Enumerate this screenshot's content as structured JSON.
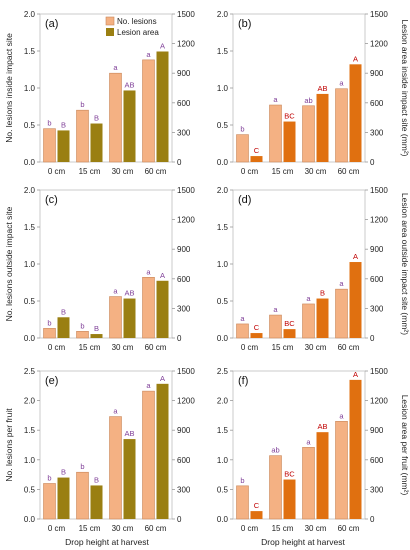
{
  "colors": {
    "lesions": "#F4B183",
    "lesions_border": "#C9875A",
    "area_left": "#9A7F12",
    "area_right": "#E07010",
    "sig_lesions": "#7F3F98",
    "sig_area_left": "#7F3F98",
    "sig_area_right": "#C00000"
  },
  "legend": {
    "lesions": "No. lesions",
    "area": "Lesion area"
  },
  "xlabel": "Drop height at harvest",
  "chart_data": [
    {
      "type": "bar",
      "panel": "(a)",
      "categories": [
        "0 cm",
        "15 cm",
        "30 cm",
        "60 cm"
      ],
      "ylabel": "No. lesions inside impact site",
      "y2label": "",
      "ylim": [
        0,
        2.0
      ],
      "yticks": [
        "0.0",
        "0.5",
        "1.0",
        "1.5",
        "2.0"
      ],
      "y2lim": [
        0,
        1500
      ],
      "y2ticks": [
        "0",
        "300",
        "600",
        "900",
        "1200",
        "1500"
      ],
      "area_color": "left",
      "series": [
        {
          "name": "No. lesions",
          "axis": "left",
          "values": [
            0.45,
            0.7,
            1.2,
            1.38
          ],
          "letters": [
            "b",
            "b",
            "a",
            "a"
          ]
        },
        {
          "name": "Lesion area",
          "axis": "right",
          "values": [
            320,
            390,
            725,
            1120
          ],
          "letters": [
            "B",
            "B",
            "AB",
            "A"
          ]
        }
      ]
    },
    {
      "type": "bar",
      "panel": "(b)",
      "categories": [
        "0 cm",
        "15 cm",
        "30 cm",
        "60 cm"
      ],
      "ylabel": "",
      "y2label": "Lesion area inside impact site (mm²)",
      "ylim": [
        0,
        2.0
      ],
      "yticks": [
        "0.0",
        "0.5",
        "1.0",
        "1.5",
        "2.0"
      ],
      "y2lim": [
        0,
        1500
      ],
      "y2ticks": [
        "0",
        "300",
        "600",
        "900",
        "1200",
        "1500"
      ],
      "area_color": "right",
      "series": [
        {
          "name": "No. lesions",
          "axis": "left",
          "values": [
            0.37,
            0.77,
            0.76,
            0.99
          ],
          "letters": [
            "b",
            "a",
            "ab",
            "a"
          ]
        },
        {
          "name": "Lesion area",
          "axis": "right",
          "values": [
            60,
            410,
            690,
            990
          ],
          "letters": [
            "C",
            "BC",
            "AB",
            "A"
          ]
        }
      ]
    },
    {
      "type": "bar",
      "panel": "(c)",
      "categories": [
        "0 cm",
        "15 cm",
        "30 cm",
        "60 cm"
      ],
      "ylabel": "No. lesions outside impact site",
      "y2label": "",
      "ylim": [
        0,
        2.0
      ],
      "yticks": [
        "0.0",
        "0.5",
        "1.0",
        "1.5",
        "2.0"
      ],
      "y2lim": [
        0,
        1500
      ],
      "y2ticks": [
        "0",
        "300",
        "600",
        "900",
        "1200",
        "1500"
      ],
      "area_color": "left",
      "series": [
        {
          "name": "No. lesions",
          "axis": "left",
          "values": [
            0.13,
            0.09,
            0.56,
            0.82
          ],
          "letters": [
            "b",
            "b",
            "a",
            "a"
          ]
        },
        {
          "name": "Lesion area",
          "axis": "right",
          "values": [
            210,
            40,
            400,
            580
          ],
          "letters": [
            "B",
            "B",
            "AB",
            "A"
          ]
        }
      ]
    },
    {
      "type": "bar",
      "panel": "(d)",
      "categories": [
        "0 cm",
        "15 cm",
        "30 cm",
        "60 cm"
      ],
      "ylabel": "",
      "y2label": "Lesion area outside impact site (mm²)",
      "ylim": [
        0,
        2.0
      ],
      "yticks": [
        "0.0",
        "0.5",
        "1.0",
        "1.5",
        "2.0"
      ],
      "y2lim": [
        0,
        1500
      ],
      "y2ticks": [
        "0",
        "300",
        "600",
        "900",
        "1200",
        "1500"
      ],
      "area_color": "right",
      "series": [
        {
          "name": "No. lesions",
          "axis": "left",
          "values": [
            0.19,
            0.31,
            0.46,
            0.66
          ],
          "letters": [
            "a",
            "a",
            "a",
            "a"
          ]
        },
        {
          "name": "Lesion area",
          "axis": "right",
          "values": [
            50,
            90,
            400,
            770
          ],
          "letters": [
            "C",
            "BC",
            "B",
            "A"
          ]
        }
      ]
    },
    {
      "type": "bar",
      "panel": "(e)",
      "categories": [
        "0 cm",
        "15 cm",
        "30 cm",
        "60 cm"
      ],
      "ylabel": "No. lesions per fruit",
      "y2label": "",
      "ylim": [
        0,
        2.5
      ],
      "yticks": [
        "0.0",
        "0.5",
        "1.0",
        "1.5",
        "2.0",
        "2.5"
      ],
      "y2lim": [
        0,
        1500
      ],
      "y2ticks": [
        "0",
        "300",
        "600",
        "900",
        "1200",
        "1500"
      ],
      "area_color": "left",
      "series": [
        {
          "name": "No. lesions",
          "axis": "left",
          "values": [
            0.6,
            0.79,
            1.73,
            2.16
          ],
          "letters": [
            "b",
            "b",
            "a",
            "a"
          ]
        },
        {
          "name": "Lesion area",
          "axis": "right",
          "values": [
            420,
            340,
            810,
            1370
          ],
          "letters": [
            "B",
            "B",
            "AB",
            "A"
          ]
        }
      ]
    },
    {
      "type": "bar",
      "panel": "(f)",
      "categories": [
        "0 cm",
        "15 cm",
        "30 cm",
        "60 cm"
      ],
      "ylabel": "",
      "y2label": "Lesion area per fruit (mm²)",
      "ylim": [
        0,
        2.5
      ],
      "yticks": [
        "0.0",
        "0.5",
        "1.0",
        "1.5",
        "2.0",
        "2.5"
      ],
      "y2lim": [
        0,
        1500
      ],
      "y2ticks": [
        "0",
        "300",
        "600",
        "900",
        "1200",
        "1500"
      ],
      "area_color": "right",
      "series": [
        {
          "name": "No. lesions",
          "axis": "left",
          "values": [
            0.56,
            1.07,
            1.21,
            1.65
          ],
          "letters": [
            "b",
            "ab",
            "a",
            "a"
          ]
        },
        {
          "name": "Lesion area",
          "axis": "right",
          "values": [
            80,
            400,
            880,
            1410
          ],
          "letters": [
            "C",
            "BC",
            "AB",
            "A"
          ]
        }
      ]
    }
  ]
}
